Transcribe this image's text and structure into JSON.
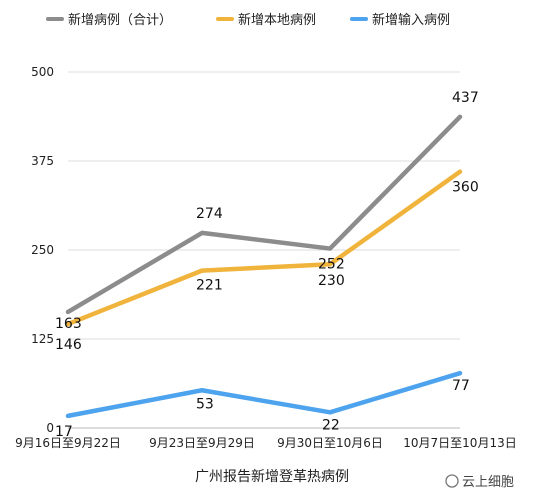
{
  "chart_data": {
    "type": "line",
    "title": "",
    "xlabel": "广州报告新增登革热病例",
    "ylabel": "",
    "categories": [
      "9月16日至9月22日",
      "9月23日至9月29日",
      "9月30日至10月6日",
      "10月7日至10月13日"
    ],
    "ylim": [
      0,
      500
    ],
    "yticks": [
      0,
      125,
      250,
      375,
      500
    ],
    "grid": true,
    "legend_position": "top",
    "series": [
      {
        "name": "新增病例（合计）",
        "values": [
          163,
          274,
          252,
          437
        ],
        "color": "#8c8c8c"
      },
      {
        "name": "新增本地病例",
        "values": [
          146,
          221,
          230,
          360
        ],
        "color": "#f0b43c"
      },
      {
        "name": "新增输入病例",
        "values": [
          17,
          53,
          22,
          77
        ],
        "color": "#4da3ee"
      }
    ]
  },
  "watermark": "云上细胞"
}
